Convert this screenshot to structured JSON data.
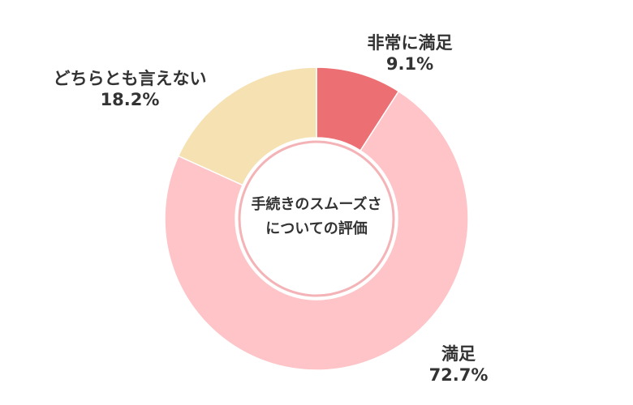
{
  "chart_data": {
    "type": "pie",
    "variant": "donut",
    "title": "",
    "center_label": [
      "手続きのスムーズさ",
      "についての評価"
    ],
    "slices": [
      {
        "name": "非常に満足",
        "value": 9.1,
        "label": "9.1%",
        "color": "#ec7073"
      },
      {
        "name": "満足",
        "value": 72.7,
        "label": "72.7%",
        "color": "#fec4c7"
      },
      {
        "name": "どちらとも言えない",
        "value": 18.2,
        "label": "18.2%",
        "color": "#f5e1b2"
      }
    ],
    "start_angle": "12 o'clock",
    "direction": "clockwise",
    "legend": "none"
  }
}
